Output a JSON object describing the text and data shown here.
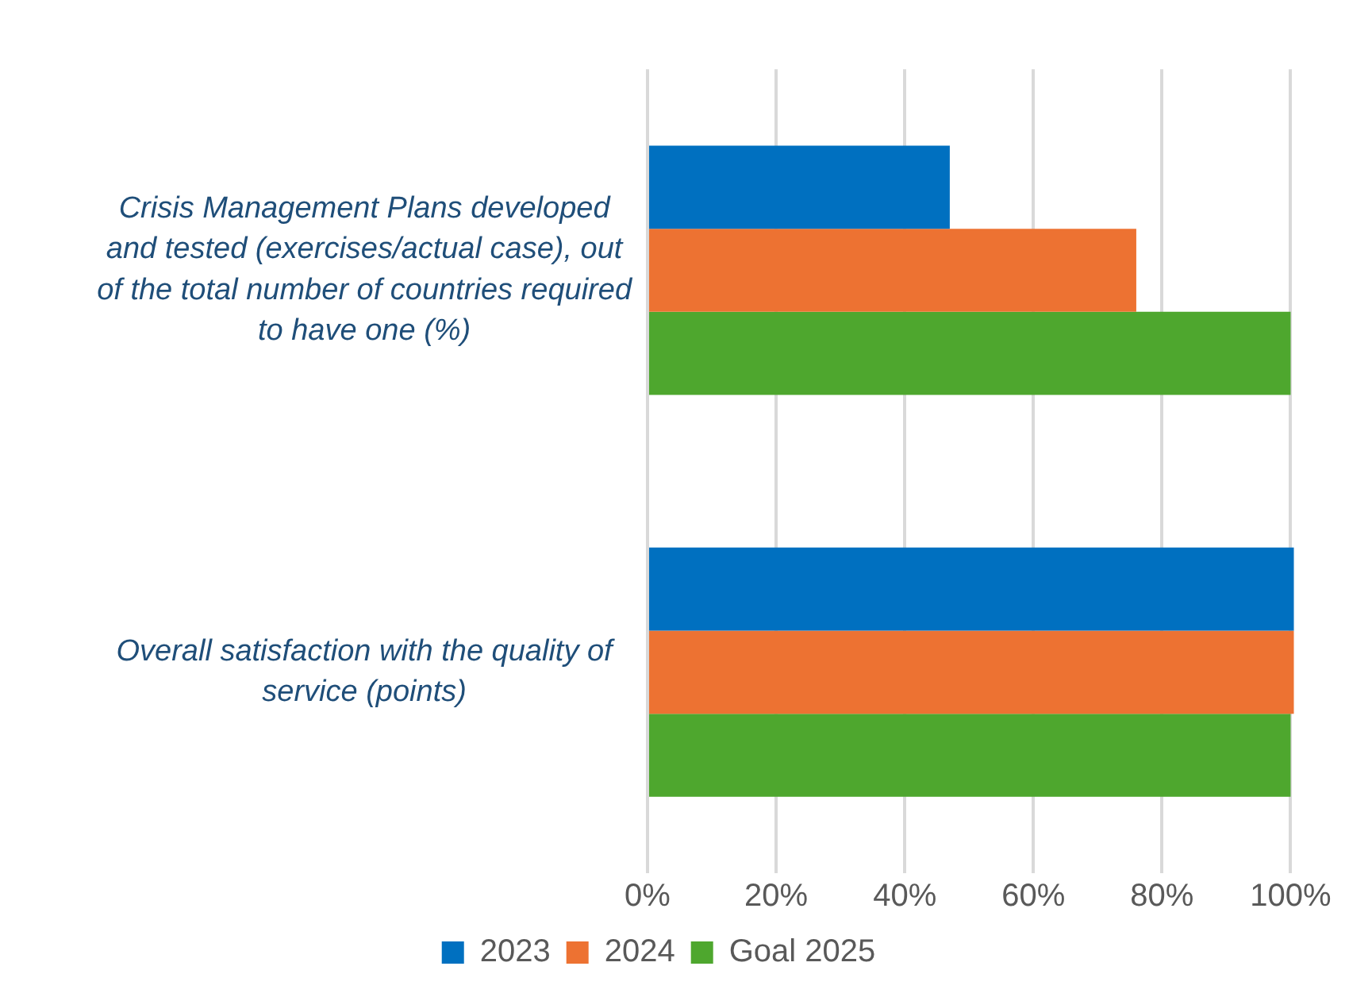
{
  "chart_data": {
    "type": "bar",
    "orientation": "horizontal",
    "categories": [
      "Crisis Management Plans developed and tested (exercises/actual case), out of the total number of countries required to have one (%)",
      "Overall satisfaction with the quality of service (points)"
    ],
    "series": [
      {
        "name": "2023",
        "color": "#0070c0",
        "values": [
          47,
          100.5
        ]
      },
      {
        "name": "2024",
        "color": "#ed7232",
        "values": [
          76,
          100.5
        ]
      },
      {
        "name": "Goal 2025",
        "color": "#4ea72e",
        "values": [
          100,
          100
        ]
      }
    ],
    "xlim": [
      0,
      101
    ],
    "xticks": [
      {
        "value": 0,
        "label": "0%"
      },
      {
        "value": 20,
        "label": "20%"
      },
      {
        "value": 40,
        "label": "40%"
      },
      {
        "value": 60,
        "label": "60%"
      },
      {
        "value": 80,
        "label": "80%"
      },
      {
        "value": 100,
        "label": "100%"
      }
    ],
    "grid": "x",
    "legend": "bottom"
  }
}
